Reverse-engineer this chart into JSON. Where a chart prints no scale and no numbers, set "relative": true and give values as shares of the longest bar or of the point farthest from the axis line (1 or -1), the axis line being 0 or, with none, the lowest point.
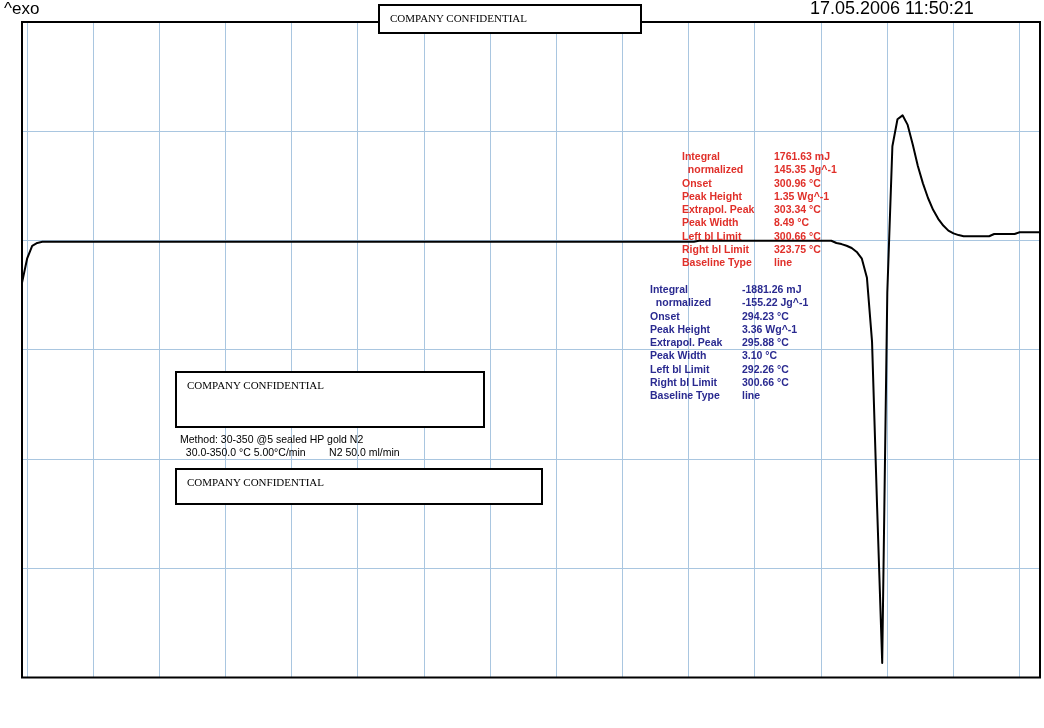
{
  "chart_data": {
    "type": "line",
    "relative": true,
    "grid": true,
    "marker": "none",
    "categories": [
      null,
      null,
      null,
      null,
      null,
      null,
      null,
      null,
      null,
      null,
      null,
      null,
      null,
      null,
      null,
      null,
      null,
      null,
      null,
      null,
      null,
      null,
      null,
      null,
      null,
      null,
      null,
      null,
      null,
      null,
      null,
      null,
      null,
      null,
      null,
      null,
      null,
      null,
      null,
      null,
      null,
      null,
      null,
      null,
      null,
      null,
      null,
      null,
      null,
      null,
      null,
      null,
      null,
      null,
      null,
      null,
      null,
      null,
      null,
      null,
      null,
      null,
      null,
      null,
      null,
      null,
      null,
      null,
      null,
      null,
      null,
      null,
      null,
      null,
      null,
      null,
      null,
      null,
      null,
      null,
      null,
      null,
      null,
      null,
      null,
      null,
      null,
      null,
      null,
      null,
      null,
      null,
      null,
      null,
      null,
      null,
      null,
      null,
      null,
      null,
      null,
      null,
      null,
      null,
      null,
      null,
      null,
      null,
      null,
      null,
      null,
      null,
      null,
      null,
      null,
      null,
      null,
      null,
      null,
      null,
      null,
      null,
      null,
      null,
      null,
      null,
      null,
      null,
      null,
      null,
      null,
      null,
      null,
      null,
      null,
      null,
      null,
      null,
      null,
      null,
      null,
      null,
      null,
      null,
      null,
      null,
      null,
      null,
      null,
      null,
      null,
      null,
      null,
      null,
      null,
      null,
      null,
      null,
      null,
      null,
      null,
      null,
      null,
      null,
      null,
      null,
      null,
      null,
      null,
      null,
      null,
      null,
      null,
      null,
      null,
      null,
      null,
      null,
      null,
      null,
      null,
      null,
      null,
      null,
      null,
      null,
      null,
      null,
      null,
      null,
      null,
      null,
      null,
      null,
      null,
      null,
      null,
      null,
      null,
      null,
      null
    ],
    "series": [
      {
        "color": "#000000",
        "values": [
          0.702,
          0.745,
          0.768,
          0.773,
          0.775,
          0.775,
          0.775,
          0.775,
          0.775,
          0.775,
          0.775,
          0.775,
          0.775,
          0.775,
          0.775,
          0.775,
          0.775,
          0.775,
          0.775,
          0.775,
          0.775,
          0.775,
          0.775,
          0.775,
          0.775,
          0.775,
          0.775,
          0.775,
          0.775,
          0.775,
          0.775,
          0.775,
          0.775,
          0.775,
          0.775,
          0.775,
          0.775,
          0.775,
          0.775,
          0.775,
          0.775,
          0.775,
          0.775,
          0.775,
          0.775,
          0.775,
          0.775,
          0.775,
          0.775,
          0.775,
          0.775,
          0.775,
          0.775,
          0.775,
          0.775,
          0.775,
          0.775,
          0.775,
          0.775,
          0.775,
          0.775,
          0.775,
          0.775,
          0.775,
          0.775,
          0.775,
          0.775,
          0.775,
          0.775,
          0.775,
          0.775,
          0.775,
          0.775,
          0.775,
          0.775,
          0.775,
          0.775,
          0.775,
          0.775,
          0.775,
          0.775,
          0.775,
          0.775,
          0.775,
          0.775,
          0.775,
          0.775,
          0.775,
          0.775,
          0.775,
          0.775,
          0.775,
          0.775,
          0.775,
          0.775,
          0.775,
          0.775,
          0.775,
          0.775,
          0.775,
          0.775,
          0.775,
          0.775,
          0.775,
          0.775,
          0.775,
          0.775,
          0.775,
          0.775,
          0.775,
          0.775,
          0.775,
          0.775,
          0.775,
          0.775,
          0.775,
          0.775,
          0.775,
          0.775,
          0.775,
          0.775,
          0.775,
          0.775,
          0.775,
          0.775,
          0.775,
          0.775,
          0.775,
          0.775,
          0.775,
          0.775,
          0.775,
          0.775,
          0.777,
          0.777,
          0.777,
          0.777,
          0.777,
          0.777,
          0.777,
          0.777,
          0.777,
          0.777,
          0.777,
          0.777,
          0.777,
          0.777,
          0.777,
          0.777,
          0.777,
          0.777,
          0.777,
          0.777,
          0.777,
          0.777,
          0.777,
          0.777,
          0.777,
          0.777,
          0.777,
          0.773,
          0.771,
          0.768,
          0.764,
          0.757,
          0.745,
          0.711,
          0.598,
          0.303,
          0.026,
          0.685,
          0.945,
          0.993,
          1,
          0.983,
          0.948,
          0.91,
          0.879,
          0.853,
          0.832,
          0.816,
          0.804,
          0.795,
          0.79,
          0.787,
          0.785,
          0.785,
          0.785,
          0.785,
          0.785,
          0.785,
          0.789,
          0.789,
          0.789,
          0.789,
          0.789,
          0.792,
          0.792,
          0.792,
          0.792,
          0.792
        ]
      }
    ],
    "annotations": [
      "17.05.2006 11:50:21",
      "COMPANY CONFIDENTIAL",
      "Integral\t1761.63 mJ\n  normalized\t145.35 Jg^-1\nOnset\t300.96 °C\nPeak Height\t1.35 Wg^-1\nExtrapol. Peak\t303.34 °C\nPeak Width\t8.49 °C\nLeft bl Limit\t300.66 °C\nRight bl Limit\t323.75 °C\nBaseline Type\tline",
      "Integral\t-1881.26 mJ\n  normalized\t-155.22 Jg^-1\nOnset\t294.23 °C\nPeak Height\t3.36 Wg^-1\nExtrapol. Peak\t295.88 °C\nPeak Width\t3.10 °C\nLeft bl Limit\t292.26 °C\nRight bl Limit\t300.66 °C\nBaseline Type\tline",
      "COMPANY CONFIDENTIAL",
      "Method: 30-350 @5 sealed HP gold N2\n  30.0-350.0 °C 5.00°C/min        N2 50.0 ml/min",
      "COMPANY CONFIDENTIAL",
      "^exo"
    ]
  }
}
